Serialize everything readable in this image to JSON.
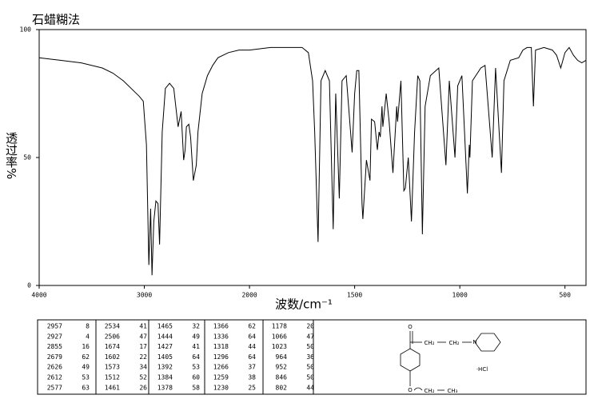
{
  "chart_data": {
    "type": "line",
    "title": "石蜡糊法",
    "xlabel": "波数/cm⁻¹",
    "ylabel": "透过率%",
    "xlim": [
      4000,
      400
    ],
    "xticks": [
      4000,
      3000,
      2000,
      1500,
      1000,
      500
    ],
    "ylim": [
      0,
      100
    ],
    "yticks": [
      0,
      50,
      100
    ],
    "color": "#000000",
    "x": [
      4000,
      3800,
      3600,
      3400,
      3300,
      3200,
      3100,
      3050,
      3010,
      2980,
      2957,
      2940,
      2927,
      2910,
      2890,
      2870,
      2855,
      2830,
      2800,
      2760,
      2720,
      2679,
      2650,
      2626,
      2612,
      2600,
      2577,
      2560,
      2534,
      2506,
      2490,
      2450,
      2400,
      2350,
      2300,
      2200,
      2100,
      2000,
      1900,
      1800,
      1750,
      1720,
      1700,
      1690,
      1674,
      1660,
      1640,
      1620,
      1602,
      1590,
      1573,
      1560,
      1540,
      1512,
      1500,
      1490,
      1480,
      1465,
      1461,
      1444,
      1427,
      1420,
      1405,
      1392,
      1384,
      1378,
      1370,
      1366,
      1350,
      1336,
      1318,
      1300,
      1296,
      1280,
      1266,
      1259,
      1245,
      1230,
      1215,
      1200,
      1190,
      1178,
      1165,
      1140,
      1100,
      1066,
      1050,
      1023,
      1010,
      990,
      964,
      955,
      952,
      940,
      900,
      880,
      846,
      830,
      802,
      790,
      760,
      720,
      700,
      680,
      660,
      650,
      640,
      600,
      560,
      540,
      520,
      500,
      480,
      460,
      440,
      420,
      400
    ],
    "values": [
      89,
      88,
      87,
      85,
      83,
      80,
      76,
      74,
      72,
      55,
      8,
      30,
      4,
      25,
      33,
      32,
      16,
      60,
      77,
      79,
      77,
      62,
      68,
      49,
      53,
      62,
      63,
      58,
      41,
      47,
      60,
      75,
      82,
      86,
      89,
      91,
      92,
      92,
      93,
      93,
      93,
      91,
      80,
      60,
      17,
      80,
      84,
      80,
      22,
      75,
      34,
      80,
      82,
      52,
      75,
      84,
      84,
      32,
      26,
      49,
      41,
      65,
      64,
      53,
      60,
      58,
      70,
      62,
      75,
      64,
      44,
      70,
      64,
      80,
      37,
      38,
      50,
      25,
      60,
      82,
      80,
      20,
      70,
      82,
      85,
      47,
      80,
      50,
      78,
      82,
      36,
      55,
      50,
      80,
      85,
      86,
      50,
      85,
      44,
      80,
      88,
      89,
      92,
      93,
      93,
      70,
      92,
      93,
      92,
      90,
      85,
      91,
      93,
      90,
      88,
      87,
      88
    ]
  },
  "peak_table": {
    "columns": [
      [
        [
          "2957",
          "8"
        ],
        [
          "2927",
          "4"
        ],
        [
          "2855",
          "16"
        ],
        [
          "2679",
          "62"
        ],
        [
          "2626",
          "49"
        ],
        [
          "2612",
          "53"
        ],
        [
          "2577",
          "63"
        ]
      ],
      [
        [
          "2534",
          "41"
        ],
        [
          "2506",
          "47"
        ],
        [
          "1674",
          "17"
        ],
        [
          "1602",
          "22"
        ],
        [
          "1573",
          "34"
        ],
        [
          "1512",
          "52"
        ],
        [
          "1461",
          "26"
        ]
      ],
      [
        [
          "1465",
          "32"
        ],
        [
          "1444",
          "49"
        ],
        [
          "1427",
          "41"
        ],
        [
          "1405",
          "64"
        ],
        [
          "1392",
          "53"
        ],
        [
          "1384",
          "60"
        ],
        [
          "1378",
          "58"
        ]
      ],
      [
        [
          "1366",
          "62"
        ],
        [
          "1336",
          "64"
        ],
        [
          "1318",
          "44"
        ],
        [
          "1296",
          "64"
        ],
        [
          "1266",
          "37"
        ],
        [
          "1259",
          "38"
        ],
        [
          "1230",
          "25"
        ]
      ],
      [
        [
          "1178",
          "20"
        ],
        [
          "1066",
          "47"
        ],
        [
          "1023",
          "50"
        ],
        [
          "964",
          "36"
        ],
        [
          "952",
          "50"
        ],
        [
          "846",
          "50"
        ],
        [
          "802",
          "44"
        ]
      ]
    ]
  },
  "structure": {
    "labels": [
      "O",
      "CH₂",
      "CH₂",
      "N",
      "·HCl",
      "O",
      "CH₂",
      "CH₃"
    ]
  }
}
